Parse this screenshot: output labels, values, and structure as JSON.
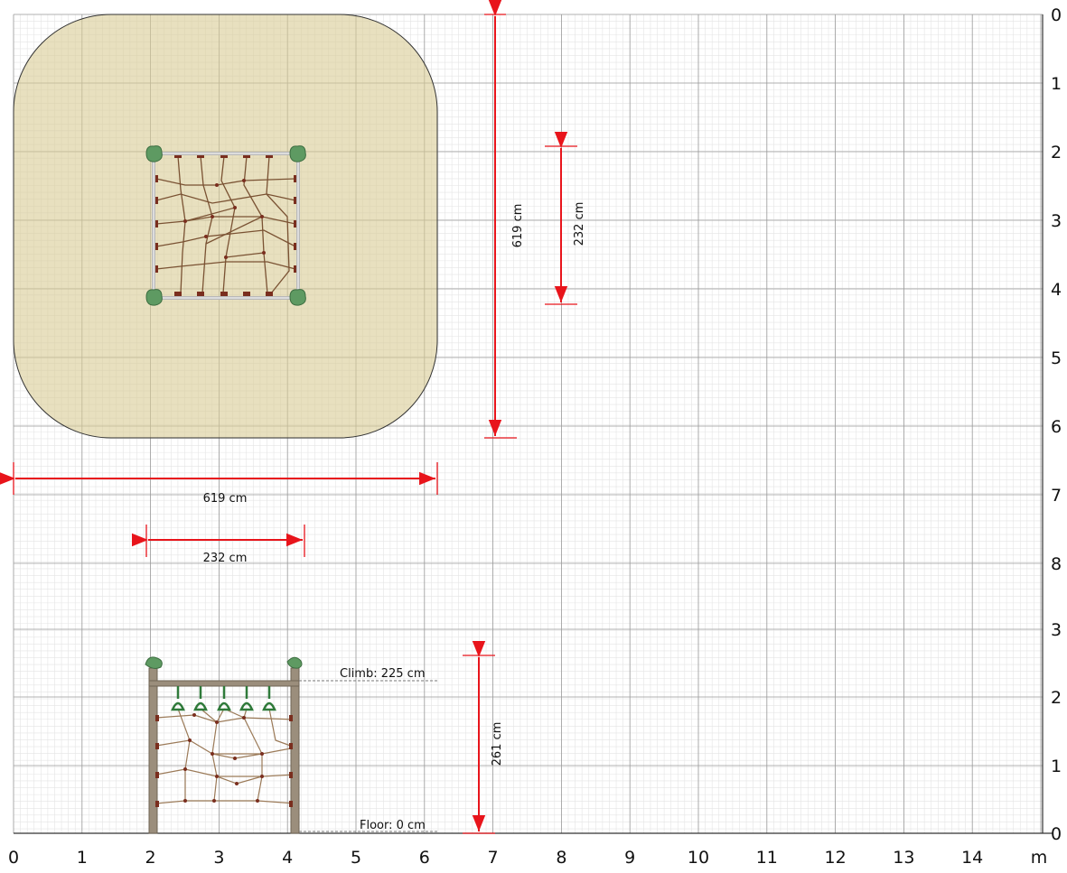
{
  "x_axis": {
    "ticks": [
      "0",
      "1",
      "2",
      "3",
      "4",
      "5",
      "6",
      "7",
      "8",
      "9",
      "10",
      "11",
      "12",
      "13",
      "14"
    ],
    "unit": "m"
  },
  "y_axis_plan": {
    "ticks": [
      "0",
      "1",
      "2",
      "3",
      "4",
      "5",
      "6",
      "7",
      "8"
    ]
  },
  "y_axis_elevation": {
    "ticks": [
      "3",
      "2",
      "1",
      "0"
    ]
  },
  "dimensions": {
    "safety_width": "619 cm",
    "safety_height": "619 cm",
    "frame_width": "232 cm",
    "frame_height": "232 cm",
    "total_height": "261 cm"
  },
  "annotations": {
    "climb": "Climb: 225 cm",
    "floor": "Floor: 0 cm"
  },
  "colors": {
    "safety_zone": "#e8dfbd",
    "dimension": "#e8141b",
    "frame_post": "#9b8e7c",
    "rope": "#7a5233",
    "canopy": "#5e9a62",
    "grid_major": "#9a9a9a",
    "grid_minor": "#e4e4e4"
  }
}
